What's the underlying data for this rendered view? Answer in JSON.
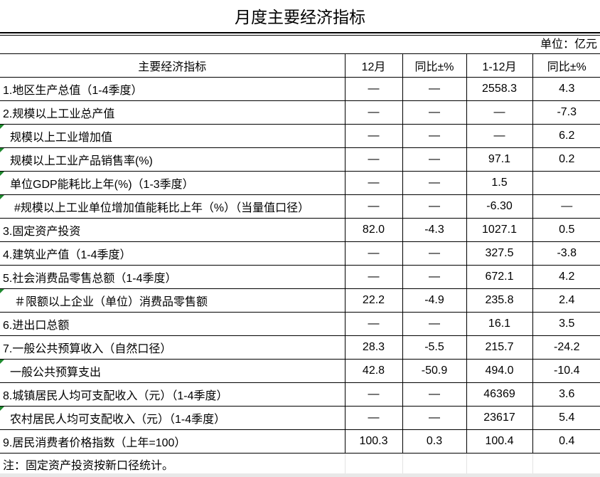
{
  "title": "月度主要经济指标",
  "unit": "单位：亿元",
  "headers": [
    "主要经济指标",
    "12月",
    "同比±%",
    "1-12月",
    "同比±%"
  ],
  "rows": [
    {
      "name": "1.地区生产总值（1-4季度）",
      "m": "—",
      "my": "—",
      "c": "2558.3",
      "cy": "4.3",
      "indent": 0,
      "mark": false
    },
    {
      "name": "2.规模以上工业总产值",
      "m": "—",
      "my": "—",
      "c": "—",
      "cy": "-7.3",
      "indent": 0,
      "mark": false
    },
    {
      "name": "规模以上工业增加值",
      "m": "—",
      "my": "—",
      "c": "—",
      "cy": "6.2",
      "indent": 1,
      "mark": true
    },
    {
      "name": "规模以上工业产品销售率(%)",
      "m": "—",
      "my": "—",
      "c": "97.1",
      "cy": "0.2",
      "indent": 1,
      "mark": true
    },
    {
      "name": "单位GDP能耗比上年(%)（1-3季度）",
      "m": "—",
      "my": "—",
      "c": "1.5",
      "cy": "",
      "indent": 1,
      "mark": true
    },
    {
      "name": "#规模以上工业单位增加值能耗比上年（%）（当量值口径）",
      "m": "—",
      "my": "—",
      "c": "-6.30",
      "cy": "—",
      "indent": 2,
      "mark": true
    },
    {
      "name": "3.固定资产投资",
      "m": "82.0",
      "my": "-4.3",
      "c": "1027.1",
      "cy": "0.5",
      "indent": 0,
      "mark": false
    },
    {
      "name": "4.建筑业产值（1-4季度）",
      "m": "—",
      "my": "—",
      "c": "327.5",
      "cy": "-3.8",
      "indent": 0,
      "mark": false
    },
    {
      "name": "5.社会消费品零售总额（1-4季度）",
      "m": "—",
      "my": "—",
      "c": "672.1",
      "cy": "4.2",
      "indent": 0,
      "mark": false
    },
    {
      "name": "＃限额以上企业（单位）消费品零售额",
      "m": "22.2",
      "my": "-4.9",
      "c": "235.8",
      "cy": "2.4",
      "indent": 2,
      "mark": true
    },
    {
      "name": "6.进出口总额",
      "m": "—",
      "my": "—",
      "c": "16.1",
      "cy": "3.5",
      "indent": 0,
      "mark": false
    },
    {
      "name": "7.一般公共预算收入（自然口径）",
      "m": "28.3",
      "my": "-5.5",
      "c": "215.7",
      "cy": "-24.2",
      "indent": 0,
      "mark": false
    },
    {
      "name": "一般公共预算支出",
      "m": "42.8",
      "my": "-50.9",
      "c": "494.0",
      "cy": "-10.4",
      "indent": 1,
      "mark": true
    },
    {
      "name": "8.城镇居民人均可支配收入（元）（1-4季度）",
      "m": "—",
      "my": "—",
      "c": "46369",
      "cy": "3.6",
      "indent": 0,
      "mark": false
    },
    {
      "name": "农村居民人均可支配收入（元）（1-4季度）",
      "m": "—",
      "my": "—",
      "c": "23617",
      "cy": "5.4",
      "indent": 1,
      "mark": true
    },
    {
      "name": "9.居民消费者价格指数（上年=100）",
      "m": "100.3",
      "my": "0.3",
      "c": "100.4",
      "cy": "0.4",
      "indent": 0,
      "mark": false
    }
  ],
  "note": "注：固定资产投资按新口径统计。",
  "colors": {
    "marker": "#1e8a2e",
    "grid": "#000000"
  }
}
